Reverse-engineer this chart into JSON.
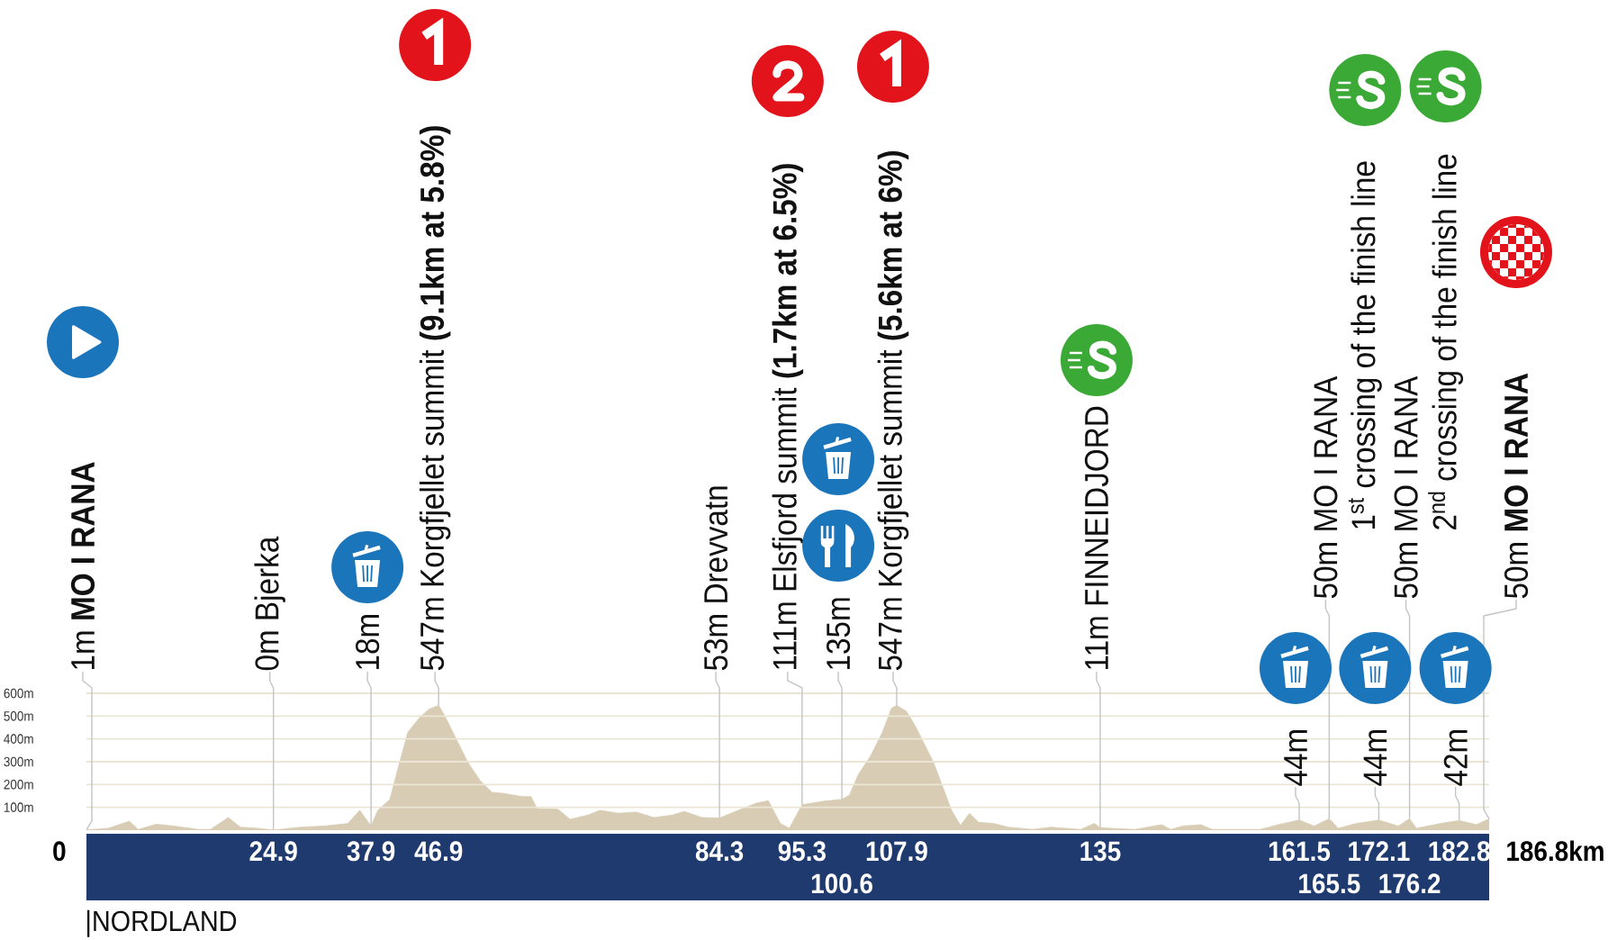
{
  "chart_data": {
    "type": "area",
    "color": "#d8cdb4",
    "x": [
      0,
      2.9,
      5.7,
      6.9,
      9.3,
      11.7,
      14.9,
      16.5,
      18.9,
      20.5,
      22.9,
      24.9,
      28.5,
      31.7,
      34.8,
      36.4,
      37.9,
      38.8,
      40.4,
      41.6,
      42.8,
      44.4,
      45.6,
      46.9,
      47.6,
      49.2,
      50.8,
      52.4,
      54.0,
      55.6,
      58.0,
      59.2,
      60.0,
      62.8,
      64.4,
      66.8,
      68.4,
      70.8,
      73.2,
      75.6,
      78.0,
      79.6,
      82.0,
      84.3,
      86.8,
      89.2,
      90.8,
      92.4,
      93.6,
      95.3,
      98.0,
      100.6,
      101.6,
      102.8,
      104.4,
      106.0,
      107.2,
      107.9,
      109.2,
      110.4,
      111.6,
      112.8,
      114.0,
      115.2,
      116.4,
      117.6,
      118.8,
      120.8,
      122.8,
      126.0,
      128.4,
      132.4,
      134.2,
      135,
      136.4,
      139.6,
      143.2,
      144.4,
      146.0,
      148.4,
      149.9,
      156.3,
      158.7,
      161.5,
      163.5,
      165.5,
      166.7,
      169.1,
      172.1,
      174.7,
      176.2,
      177.1,
      180.3,
      182.8,
      185.1,
      186.8
    ],
    "values": [
      1,
      8,
      39,
      3,
      26,
      18,
      3,
      3,
      55,
      13,
      8,
      0,
      13,
      18,
      29,
      87,
      18,
      87,
      134,
      284,
      429,
      495,
      530,
      547,
      508,
      403,
      297,
      218,
      166,
      161,
      147,
      147,
      95,
      92,
      47,
      66,
      87,
      74,
      79,
      55,
      66,
      82,
      55,
      53,
      87,
      118,
      129,
      29,
      8,
      111,
      126,
      135,
      153,
      245,
      324,
      429,
      534,
      547,
      521,
      455,
      376,
      297,
      192,
      87,
      21,
      74,
      34,
      29,
      13,
      3,
      13,
      3,
      29,
      11,
      8,
      3,
      24,
      3,
      18,
      24,
      3,
      3,
      24,
      44,
      18,
      50,
      8,
      29,
      44,
      18,
      50,
      8,
      29,
      42,
      24,
      50
    ],
    "xlim": [
      0,
      186.8
    ],
    "ylim": [
      0,
      600
    ],
    "xticks": [
      24.9,
      37.9,
      46.9,
      84.3,
      95.3,
      107.9,
      135,
      161.5,
      172.1,
      182.8
    ],
    "yticks": [
      {
        "value": 100,
        "label": "100m"
      },
      {
        "value": 200,
        "label": "200m"
      },
      {
        "value": 300,
        "label": "300m"
      },
      {
        "value": 400,
        "label": "400m"
      },
      {
        "value": 500,
        "label": "500m"
      },
      {
        "value": 600,
        "label": "600m"
      }
    ],
    "grid": "y",
    "annotations": [
      "0",
      "186.8km",
      "|NORDLAND",
      {
        "text": "1m **MO I RANA**",
        "x": 0,
        "y": 1
      },
      {
        "text": "0m Bjerka",
        "x": 24.9,
        "y": 0
      },
      {
        "text": "18m",
        "x": 37.9,
        "y": 18
      },
      {
        "text": "547m Korgfjellet summit **(9.1km at 5.8%)**",
        "x": 46.9,
        "y": 547
      },
      {
        "text": "53m Drevvatn",
        "x": 84.3,
        "y": 53
      },
      {
        "text": "111m Elsfjord summit **(1.7km at 6.5%)**",
        "x": 95.3,
        "y": 111
      },
      {
        "text": "135m",
        "x": 100.6,
        "y": 135
      },
      {
        "text": "547m Korgfjellet summit **(5.6km at 6%)**",
        "x": 107.9,
        "y": 547
      },
      {
        "text": "11m FINNEIDJORD",
        "x": 135,
        "y": 11
      },
      {
        "text": "44m",
        "x": 161.5,
        "y": 44
      },
      {
        "text": "50m MO I RANA",
        "x": 165.5,
        "y": 50
      },
      "1$^{st}$ crossing of the finish line",
      {
        "text": "44m",
        "x": 172.1,
        "y": 44
      },
      {
        "text": "50m MO I RANA",
        "x": 176.2,
        "y": 50
      },
      "2$^{nd}$ crossing of the finish line",
      {
        "text": "42m",
        "x": 182.8,
        "y": 42
      },
      {
        "text": "50m **MO I RANA**",
        "x": 186.8,
        "y": 50
      },
      "100.6",
      "165.5",
      "176.2"
    ]
  }
}
